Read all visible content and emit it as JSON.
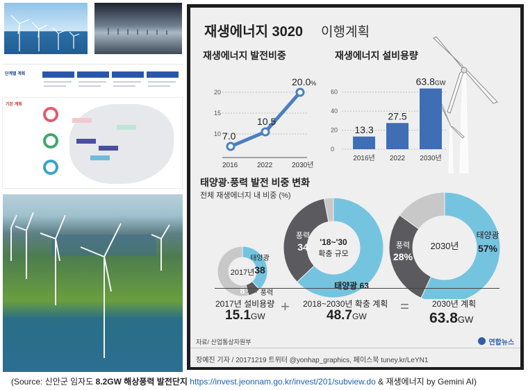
{
  "infographic": {
    "title_main": "재생에너지 3020",
    "title_sub": "이행계획",
    "source_line": "자료/ 산업통상자원부",
    "credit_line": "장예진 기자 / 20171219 트위터 @yonhap_graphics, 페이스북 tuney.kr/LeYN1",
    "logo_text": "연합뉴스",
    "center_2030_label": "2030년",
    "center_2017_label": "2017년",
    "center_expand_label1": "'18~'30",
    "center_expand_label2": "확충 규모",
    "totals": [
      {
        "label": "2017년 설비용량",
        "value": "15.1",
        "unit": "GW"
      },
      {
        "label": "2018~2030년 확충 계획",
        "value": "48.7",
        "unit": "GW"
      },
      {
        "label": "2030년 계획",
        "value": "63.8",
        "unit": "GW"
      }
    ],
    "op_plus": "+",
    "op_equals": "="
  },
  "left_panel": {
    "stage_label": "단계별 계획",
    "basic_label": "기본 계획"
  },
  "caption": {
    "prefix": "(Source: 신안군 임자도 ",
    "bold": "8.2GW 해상풍력 발전단지",
    "link": "https://invest.jeonnam.go.kr/invest/201/subview.do",
    "suffix": " & 재생에너지 by Gemini AI)"
  },
  "colors": {
    "line_blue": "#4a7fc0",
    "bar_blue": "#3f6eb5",
    "pie_solar": "#74c4e0",
    "pie_wind": "#5a5a5f",
    "pie_other": "#c8c8c8",
    "panel_bg": "#efefef"
  },
  "chart_data": [
    {
      "type": "line",
      "title": "재생에너지 발전비중",
      "categories": [
        "2016",
        "2022",
        "2030년"
      ],
      "values": [
        7.0,
        10.5,
        20.0
      ],
      "value_labels": [
        "7.0",
        "10.5",
        "20.0"
      ],
      "value_unit": "%",
      "yticks": [
        10,
        15,
        20
      ],
      "ylim": [
        5,
        22
      ]
    },
    {
      "type": "bar",
      "title": "재생에너지 설비용량",
      "categories": [
        "2016년",
        "2022",
        "2030년"
      ],
      "values": [
        13.3,
        27.5,
        63.8
      ],
      "value_labels": [
        "13.3",
        "27.5",
        "63.8"
      ],
      "value_unit": "GW",
      "yticks": [
        0,
        20,
        40,
        60
      ],
      "ylim": [
        0,
        70
      ]
    },
    {
      "type": "pie",
      "title": "태양광·풍력 발전 비중 변화",
      "subtitle": "전체 재생에너지 내 비중 (%)",
      "donuts": [
        {
          "name": "2017년",
          "slices": [
            {
              "label": "태양광",
              "value": 38
            },
            {
              "label": "풍력",
              "value": 8
            },
            {
              "label": "",
              "value": 54
            }
          ]
        },
        {
          "name": "'18~'30 확충 규모",
          "slices": [
            {
              "label": "태양광",
              "value": 63
            },
            {
              "label": "풍력",
              "value": 34
            },
            {
              "label": "",
              "value": 3
            }
          ]
        },
        {
          "name": "2030년",
          "slices": [
            {
              "label": "태양광",
              "value": 57,
              "value_text": "57%"
            },
            {
              "label": "풍력",
              "value": 28,
              "value_text": "28%"
            },
            {
              "label": "",
              "value": 15
            }
          ]
        }
      ]
    }
  ]
}
